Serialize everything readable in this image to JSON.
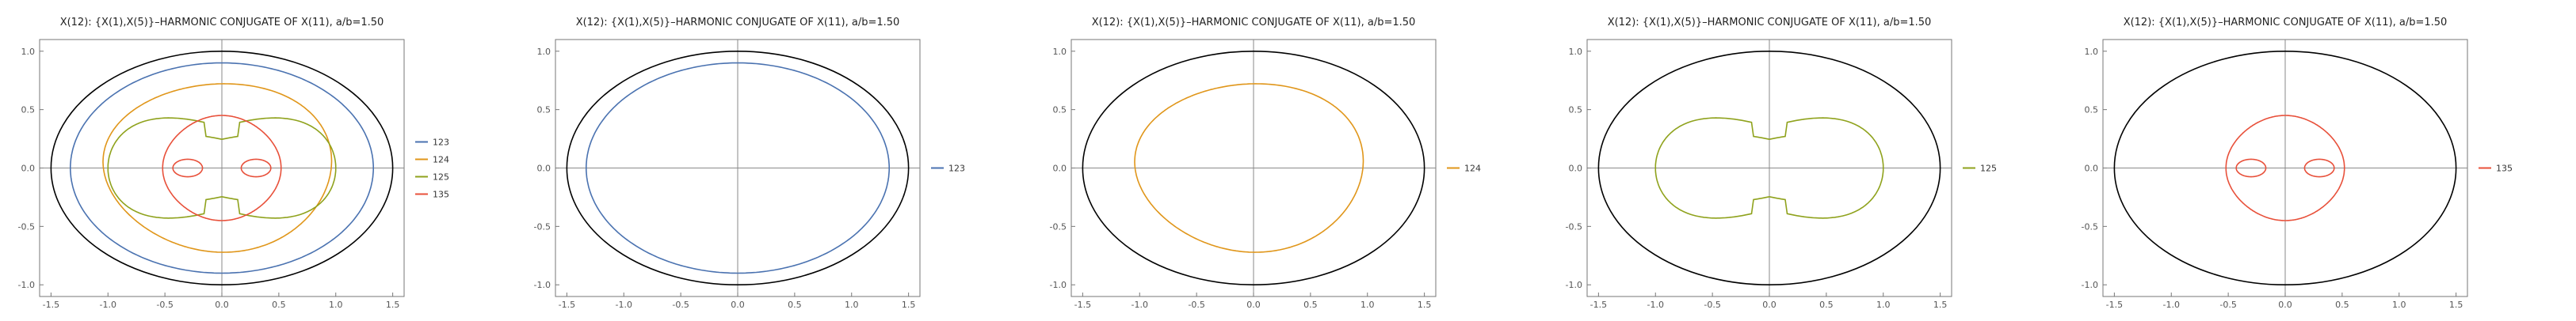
{
  "colors": {
    "s123": "#4a72b0",
    "s124": "#e0961a",
    "s125": "#8fa21c",
    "s135": "#e8503a",
    "ellipse": "#000000",
    "axis": "#8a8a8a"
  },
  "chart_data": [
    {
      "type": "line",
      "title": "X(12): {X(1),X(5)}–HARMONIC CONJUGATE OF X(11), a/b=1.50",
      "xlim": [
        -1.6,
        1.6
      ],
      "ylim": [
        -1.1,
        1.1
      ],
      "xticks": [
        -1.5,
        -1.0,
        -0.5,
        0.0,
        0.5,
        1.0,
        1.5
      ],
      "xtick_labels": [
        "-1.5",
        "-1.0",
        "-0.5",
        "0.0",
        "0.5",
        "1.0",
        "1.5"
      ],
      "yticks": [
        -1.0,
        -0.5,
        0.0,
        0.5,
        1.0
      ],
      "ytick_labels": [
        "-1.0",
        "-0.5",
        "0.0",
        "0.5",
        "1.0"
      ],
      "ellipse": {
        "a": 1.5,
        "b": 1.0
      },
      "series": [
        {
          "name": "123",
          "color_key": "s123",
          "shape": "ellipse",
          "rx": 1.33,
          "ry": 0.9
        },
        {
          "name": "124",
          "color_key": "s124",
          "shape": "egg",
          "rx": 1.0,
          "ry": 0.72
        },
        {
          "name": "125",
          "color_key": "s125",
          "shape": "cardioid",
          "rx": 1.0,
          "ry": 0.44
        },
        {
          "name": "135",
          "color_key": "s135",
          "shape": "limacon",
          "rx": 0.52,
          "ry": 0.45
        }
      ],
      "legend": [
        "123",
        "124",
        "125",
        "135"
      ]
    },
    {
      "type": "line",
      "title": "X(12): {X(1),X(5)}–HARMONIC CONJUGATE OF X(11), a/b=1.50",
      "xlim": [
        -1.6,
        1.6
      ],
      "ylim": [
        -1.1,
        1.1
      ],
      "xticks": [
        -1.5,
        -1.0,
        -0.5,
        0.0,
        0.5,
        1.0,
        1.5
      ],
      "xtick_labels": [
        "-1.5",
        "-1.0",
        "-0.5",
        "0.0",
        "0.5",
        "1.0",
        "1.5"
      ],
      "yticks": [
        -1.0,
        -0.5,
        0.0,
        0.5,
        1.0
      ],
      "ytick_labels": [
        "-1.0",
        "-0.5",
        "0.0",
        "0.5",
        "1.0"
      ],
      "ellipse": {
        "a": 1.5,
        "b": 1.0
      },
      "series": [
        {
          "name": "123",
          "color_key": "s123",
          "shape": "ellipse",
          "rx": 1.33,
          "ry": 0.9
        }
      ],
      "legend": [
        "123"
      ]
    },
    {
      "type": "line",
      "title": "X(12): {X(1),X(5)}–HARMONIC CONJUGATE OF X(11), a/b=1.50",
      "xlim": [
        -1.6,
        1.6
      ],
      "ylim": [
        -1.1,
        1.1
      ],
      "xticks": [
        -1.5,
        -1.0,
        -0.5,
        0.0,
        0.5,
        1.0,
        1.5
      ],
      "xtick_labels": [
        "-1.5",
        "-1.0",
        "-0.5",
        "0.0",
        "0.5",
        "1.0",
        "1.5"
      ],
      "yticks": [
        -1.0,
        -0.5,
        0.0,
        0.5,
        1.0
      ],
      "ytick_labels": [
        "-1.0",
        "-0.5",
        "0.0",
        "0.5",
        "1.0"
      ],
      "ellipse": {
        "a": 1.5,
        "b": 1.0
      },
      "series": [
        {
          "name": "124",
          "color_key": "s124",
          "shape": "egg",
          "rx": 1.0,
          "ry": 0.72
        }
      ],
      "legend": [
        "124"
      ]
    },
    {
      "type": "line",
      "title": "X(12): {X(1),X(5)}–HARMONIC CONJUGATE OF X(11), a/b=1.50",
      "xlim": [
        -1.6,
        1.6
      ],
      "ylim": [
        -1.1,
        1.1
      ],
      "xticks": [
        -1.5,
        -1.0,
        -0.5,
        0.0,
        0.5,
        1.0,
        1.5
      ],
      "xtick_labels": [
        "-1.5",
        "-1.0",
        "-0.5",
        "0.0",
        "0.5",
        "1.0",
        "1.5"
      ],
      "yticks": [
        -1.0,
        -0.5,
        0.0,
        0.5,
        1.0
      ],
      "ytick_labels": [
        "-1.0",
        "-0.5",
        "0.0",
        "0.5",
        "1.0"
      ],
      "ellipse": {
        "a": 1.5,
        "b": 1.0
      },
      "series": [
        {
          "name": "125",
          "color_key": "s125",
          "shape": "cardioid",
          "rx": 1.0,
          "ry": 0.44
        }
      ],
      "legend": [
        "125"
      ]
    },
    {
      "type": "line",
      "title": "X(12): {X(1),X(5)}–HARMONIC CONJUGATE OF X(11), a/b=1.50",
      "xlim": [
        -1.6,
        1.6
      ],
      "ylim": [
        -1.1,
        1.1
      ],
      "xticks": [
        -1.5,
        -1.0,
        -0.5,
        0.0,
        0.5,
        1.0,
        1.5
      ],
      "xtick_labels": [
        "-1.5",
        "-1.0",
        "-0.5",
        "0.0",
        "0.5",
        "1.0",
        "1.5"
      ],
      "yticks": [
        -1.0,
        -0.5,
        0.0,
        0.5,
        1.0
      ],
      "ytick_labels": [
        "-1.0",
        "-0.5",
        "0.0",
        "0.5",
        "1.0"
      ],
      "ellipse": {
        "a": 1.5,
        "b": 1.0
      },
      "series": [
        {
          "name": "135",
          "color_key": "s135",
          "shape": "limacon",
          "rx": 0.52,
          "ry": 0.45
        }
      ],
      "legend": [
        "135"
      ]
    }
  ]
}
